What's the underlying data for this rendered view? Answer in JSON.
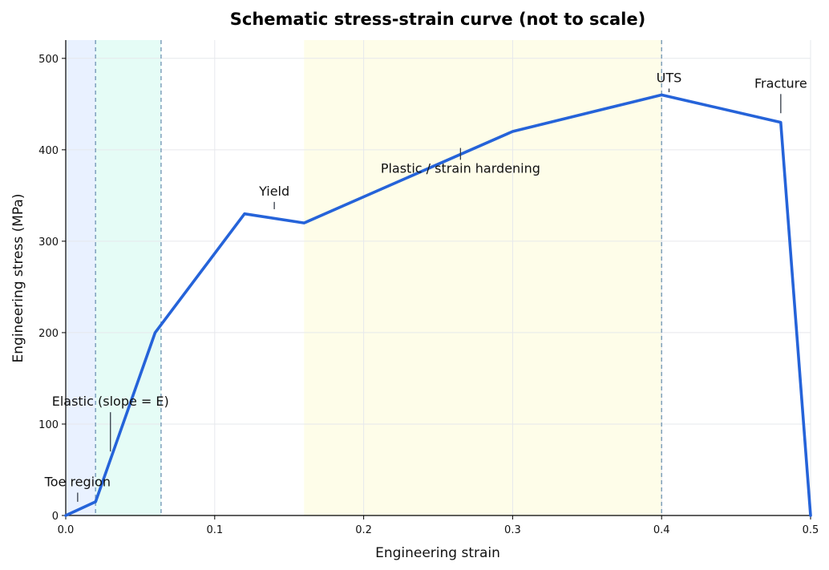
{
  "chart_data": {
    "type": "line",
    "title": "Schematic stress-strain curve (not to scale)",
    "xlabel": "Engineering strain",
    "ylabel": "Engineering stress (MPa)",
    "xlim": [
      0,
      0.5
    ],
    "ylim": [
      0,
      520
    ],
    "xticks": [
      0,
      0.1,
      0.2,
      0.3,
      0.4,
      0.5
    ],
    "xtick_labels": [
      "0.0",
      "0.1",
      "0.2",
      "0.3",
      "0.4",
      "0.5"
    ],
    "yticks": [
      0,
      100,
      200,
      300,
      400,
      500
    ],
    "ytick_labels": [
      "0",
      "100",
      "200",
      "300",
      "400",
      "500"
    ],
    "grid": true,
    "series": [
      {
        "color": "#2563d9",
        "x": [
          0.0,
          0.02,
          0.06,
          0.12,
          0.16,
          0.3,
          0.4,
          0.48,
          0.5
        ],
        "y": [
          0,
          15,
          200,
          330,
          320,
          420,
          460,
          430,
          0
        ]
      }
    ],
    "shaded_regions": [
      {
        "x0": 0.0,
        "x1": 0.02,
        "color": "#e9f1ff"
      },
      {
        "x0": 0.02,
        "x1": 0.064,
        "color": "#e5fcf6"
      },
      {
        "x0": 0.16,
        "x1": 0.4,
        "color": "#fefde9"
      }
    ],
    "vertical_lines": [
      0.02,
      0.064,
      0.4
    ],
    "annotations": [
      {
        "text": "Toe region",
        "x": 0.008,
        "y": 32,
        "point_y": 15
      },
      {
        "text": "Elastic (slope = E)",
        "x": 0.03,
        "y": 120,
        "point_y": 70
      },
      {
        "text": "Yield",
        "x": 0.14,
        "y": 350,
        "point_y": 335
      },
      {
        "text": "Plastic / strain hardening",
        "x": 0.265,
        "y": 375,
        "point_y": 402
      },
      {
        "text": "UTS",
        "x": 0.405,
        "y": 474,
        "point_y": 463
      },
      {
        "text": "Fracture",
        "x": 0.48,
        "y": 468,
        "point_y": 440
      }
    ]
  }
}
